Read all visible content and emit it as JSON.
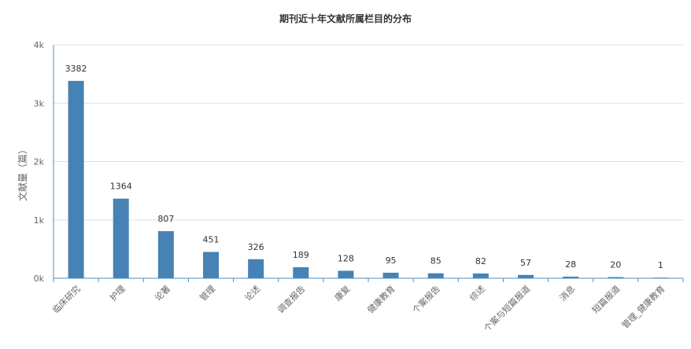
{
  "chart_data": {
    "type": "bar",
    "title": "期刊近十年文献所属栏目的分布",
    "xlabel": "",
    "ylabel": "文献量（篇）",
    "ylim": [
      0,
      4000
    ],
    "yticks": [
      "0k",
      "1k",
      "2k",
      "3k",
      "4k"
    ],
    "yticks_values": [
      0,
      1000,
      2000,
      3000,
      4000
    ],
    "grid": true,
    "categories": [
      "临床研究",
      "护理",
      "论著",
      "管理",
      "论述",
      "调查报告",
      "康复",
      "健康教育",
      "个案报告",
      "综述",
      "个案与短篇报道",
      "消息",
      "短篇报道",
      "管理_健康教育"
    ],
    "values": [
      3382,
      1364,
      807,
      451,
      326,
      189,
      128,
      95,
      85,
      82,
      57,
      28,
      20,
      1
    ],
    "bar_color": "#4682b4"
  }
}
